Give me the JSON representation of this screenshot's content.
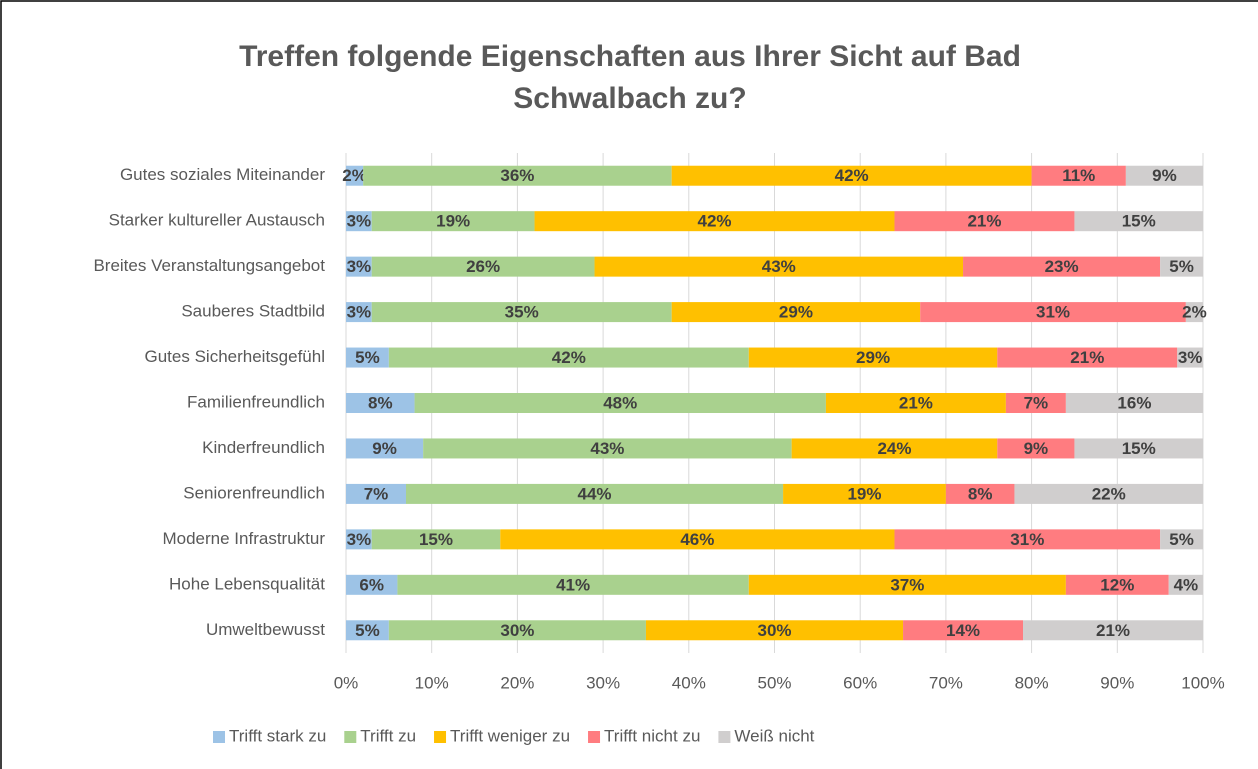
{
  "chart_data": {
    "type": "stacked-bar-horizontal",
    "title": "Treffen folgende Eigenschaften aus Ihrer Sicht auf Bad Schwalbach zu?",
    "categories": [
      "Gutes soziales Miteinander",
      "Starker kultureller Austausch",
      "Breites Veranstaltungsangebot",
      "Sauberes Stadtbild",
      "Gutes Sicherheitsgefühl",
      "Familienfreundlich",
      "Kinderfreundlich",
      "Seniorenfreundlich",
      "Moderne Infrastruktur",
      "Hohe Lebensqualität",
      "Umweltbewusst"
    ],
    "series": [
      {
        "name": "Trifft stark zu",
        "color": "#9dc3e6",
        "values": [
          2,
          3,
          3,
          3,
          5,
          8,
          9,
          7,
          3,
          6,
          5
        ],
        "value_labels": [
          "2%",
          "3%",
          "3%",
          "3%",
          "5%",
          "8%",
          "9%",
          "7%",
          "3%",
          "6%",
          "5%"
        ]
      },
      {
        "name": "Trifft zu",
        "color": "#a9d18e",
        "values": [
          36,
          19,
          26,
          35,
          42,
          48,
          43,
          44,
          15,
          41,
          30
        ],
        "value_labels": [
          "36%",
          "19%",
          "26%",
          "35%",
          "42%",
          "48%",
          "43%",
          "44%",
          "15%",
          "41%",
          "30%"
        ]
      },
      {
        "name": "Trifft weniger zu",
        "color": "#ffc000",
        "values": [
          42,
          42,
          43,
          29,
          29,
          21,
          24,
          19,
          46,
          37,
          30
        ],
        "value_labels": [
          "42%",
          "42%",
          "43%",
          "29%",
          "29%",
          "21%",
          "24%",
          "19%",
          "46%",
          "37%",
          "30%"
        ]
      },
      {
        "name": "Trifft nicht zu",
        "color": "#ff7c80",
        "values": [
          11,
          21,
          23,
          31,
          21,
          7,
          9,
          8,
          31,
          12,
          14
        ],
        "value_labels": [
          "11%",
          "21%",
          "23%",
          "31%",
          "21%",
          "7%",
          "9%",
          "8%",
          "31%",
          "12%",
          "14%"
        ]
      },
      {
        "name": "Weiß nicht",
        "color": "#d0cece",
        "values": [
          9,
          15,
          5,
          2,
          3,
          16,
          15,
          22,
          5,
          4,
          21
        ],
        "value_labels": [
          "9%",
          "15%",
          "5%",
          "2%",
          "3%",
          "16%",
          "15%",
          "22%",
          "5%",
          "4%",
          "21%"
        ]
      }
    ],
    "xlim": [
      0,
      100
    ],
    "xticks": [
      {
        "value": 0,
        "label": "0%"
      },
      {
        "value": 10,
        "label": "10%"
      },
      {
        "value": 20,
        "label": "20%"
      },
      {
        "value": 30,
        "label": "30%"
      },
      {
        "value": 40,
        "label": "40%"
      },
      {
        "value": 50,
        "label": "50%"
      },
      {
        "value": 60,
        "label": "60%"
      },
      {
        "value": 70,
        "label": "70%"
      },
      {
        "value": 80,
        "label": "80%"
      },
      {
        "value": 90,
        "label": "90%"
      },
      {
        "value": 100,
        "label": "100%"
      }
    ],
    "grid": true,
    "legend": "bottom"
  }
}
